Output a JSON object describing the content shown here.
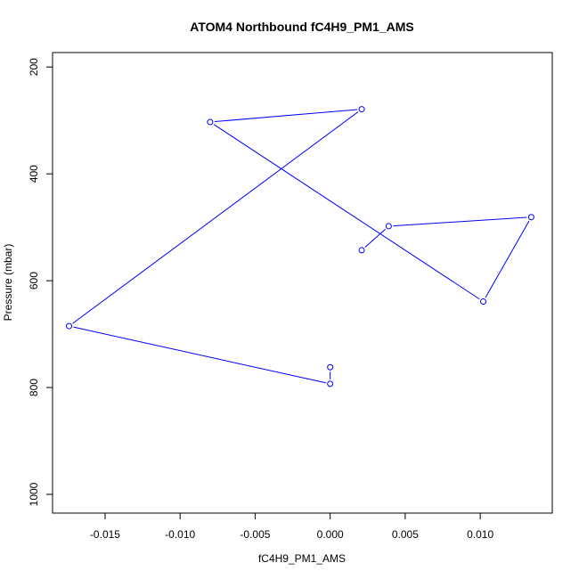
{
  "chart_data": {
    "type": "line",
    "title": "ATOM4 Northbound fC4H9_PM1_AMS",
    "xlabel": "fC4H9_PM1_AMS",
    "ylabel": "Pressure (mbar)",
    "xlim": [
      -0.0185,
      0.0148
    ],
    "ylim": [
      1035,
      173
    ],
    "y_reversed": true,
    "x_ticks": [
      -0.015,
      -0.01,
      -0.005,
      0.0,
      0.005,
      0.01
    ],
    "x_tick_labels": [
      "-0.015",
      "-0.010",
      "-0.005",
      "0.000",
      "0.005",
      "0.010"
    ],
    "y_ticks": [
      200,
      400,
      600,
      800,
      1000
    ],
    "y_tick_labels": [
      "200",
      "400",
      "600",
      "800",
      "1000"
    ],
    "grid": false,
    "line_color": "#0000ff",
    "marker": "open-circle",
    "series": [
      {
        "points": [
          {
            "x": 0.0,
            "y": 762
          },
          {
            "x": 0.0,
            "y": 793
          },
          {
            "x": -0.0174,
            "y": 685
          },
          {
            "x": 0.0021,
            "y": 279
          },
          {
            "x": -0.008,
            "y": 303
          },
          {
            "x": 0.0102,
            "y": 639
          },
          {
            "x": 0.0134,
            "y": 481
          },
          {
            "x": 0.0039,
            "y": 498
          },
          {
            "x": 0.0021,
            "y": 543
          }
        ]
      }
    ]
  }
}
